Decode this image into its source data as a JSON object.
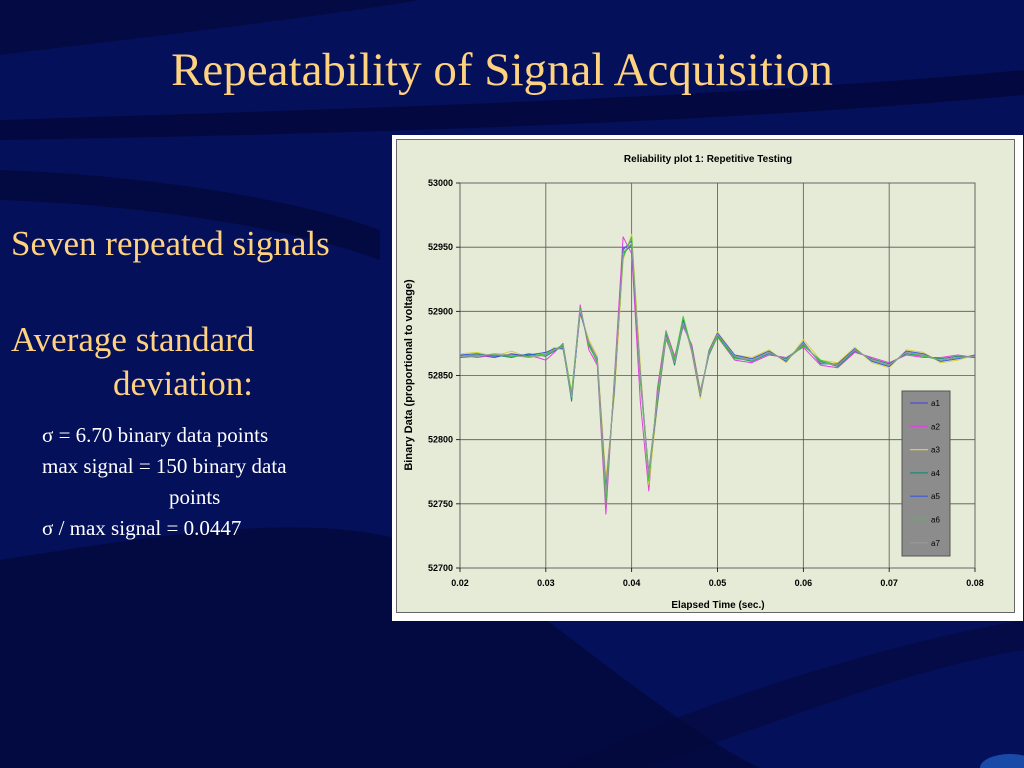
{
  "slide": {
    "title": "Repeatability of Signal Acquisition",
    "line1": "Seven repeated signals",
    "line2a": "Average standard",
    "line2b": "deviation:",
    "stat1": "σ = 6.70 binary data points",
    "stat2a": "max signal = 150 binary data",
    "stat2b": "points",
    "stat3": "σ / max signal = 0.0447"
  },
  "colors": {
    "background": "#05105a",
    "title_text": "#ffd27f",
    "body_text": "#ffffff",
    "plot_area": "#e6ebd7",
    "legend_box": "#8c8c8c"
  },
  "chart_data": {
    "type": "line",
    "title": "Reliability plot 1:  Repetitive Testing",
    "xlabel": "Elapsed Time (sec.)",
    "ylabel": "Binary Data (proportional to voltage)",
    "xlim": [
      0.02,
      0.08
    ],
    "ylim": [
      52700,
      53000
    ],
    "xticks": [
      "0.02",
      "0.03",
      "0.04",
      "0.05",
      "0.06",
      "0.07",
      "0.08"
    ],
    "yticks": [
      "52700",
      "52750",
      "52800",
      "52850",
      "52900",
      "52950",
      "53000"
    ],
    "grid": true,
    "legend_position": "lower-right",
    "x": [
      0.02,
      0.022,
      0.024,
      0.026,
      0.028,
      0.03,
      0.031,
      0.032,
      0.033,
      0.034,
      0.035,
      0.036,
      0.037,
      0.038,
      0.039,
      0.04,
      0.041,
      0.042,
      0.043,
      0.044,
      0.045,
      0.046,
      0.047,
      0.048,
      0.049,
      0.05,
      0.052,
      0.054,
      0.056,
      0.058,
      0.06,
      0.062,
      0.064,
      0.066,
      0.068,
      0.07,
      0.072,
      0.074,
      0.076,
      0.078,
      0.08
    ],
    "series": [
      {
        "name": "a1",
        "color": "#4b4bd8",
        "values": [
          52865,
          52866,
          52864,
          52867,
          52865,
          52866,
          52870,
          52872,
          52832,
          52900,
          52875,
          52862,
          52760,
          52842,
          52948,
          52955,
          52850,
          52770,
          52830,
          52880,
          52860,
          52892,
          52870,
          52835,
          52868,
          52882,
          52865,
          52862,
          52868,
          52862,
          52875,
          52860,
          52858,
          52870,
          52862,
          52858,
          52868,
          52866,
          52862,
          52864,
          52865
        ]
      },
      {
        "name": "a2",
        "color": "#e040e0",
        "values": [
          52866,
          52864,
          52866,
          52865,
          52866,
          52862,
          52868,
          52875,
          52835,
          52905,
          52870,
          52858,
          52742,
          52850,
          52958,
          52945,
          52830,
          52760,
          52840,
          52885,
          52865,
          52888,
          52874,
          52838,
          52866,
          52880,
          52862,
          52860,
          52866,
          52864,
          52872,
          52858,
          52856,
          52868,
          52864,
          52860,
          52866,
          52864,
          52864,
          52866,
          52864
        ]
      },
      {
        "name": "a3",
        "color": "#d8d040",
        "values": [
          52867,
          52868,
          52865,
          52869,
          52864,
          52867,
          52872,
          52870,
          52838,
          52898,
          52878,
          52865,
          52770,
          52835,
          52940,
          52960,
          52858,
          52765,
          52826,
          52878,
          52862,
          52895,
          52868,
          52832,
          52870,
          52884,
          52866,
          52864,
          52870,
          52860,
          52878,
          52862,
          52860,
          52872,
          52860,
          52856,
          52870,
          52868,
          52860,
          52862,
          52866
        ]
      },
      {
        "name": "a4",
        "color": "#208a7a",
        "values": [
          52864,
          52865,
          52866,
          52864,
          52867,
          52865,
          52869,
          52873,
          52830,
          52902,
          52874,
          52860,
          52755,
          52845,
          52945,
          52952,
          52846,
          52775,
          52832,
          52882,
          52858,
          52890,
          52872,
          52836,
          52866,
          52881,
          52864,
          52861,
          52867,
          52863,
          52874,
          52861,
          52857,
          52869,
          52863,
          52859,
          52867,
          52865,
          52863,
          52865,
          52864
        ]
      },
      {
        "name": "a5",
        "color": "#3a5ad8",
        "values": [
          52866,
          52867,
          52865,
          52866,
          52866,
          52868,
          52871,
          52871,
          52834,
          52899,
          52876,
          52863,
          52762,
          52840,
          52950,
          52950,
          52852,
          52772,
          52828,
          52879,
          52861,
          52893,
          52869,
          52834,
          52869,
          52883,
          52866,
          52863,
          52869,
          52861,
          52876,
          52859,
          52859,
          52871,
          52861,
          52857,
          52869,
          52867,
          52861,
          52863,
          52866
        ]
      },
      {
        "name": "a6",
        "color": "#38c838",
        "values": [
          52865,
          52866,
          52866,
          52865,
          52865,
          52867,
          52870,
          52874,
          52836,
          52903,
          52873,
          52861,
          52750,
          52848,
          52942,
          52958,
          52848,
          52768,
          52836,
          52884,
          52863,
          52896,
          52871,
          52837,
          52867,
          52880,
          52863,
          52862,
          52868,
          52862,
          52873,
          52862,
          52858,
          52870,
          52862,
          52858,
          52868,
          52865,
          52862,
          52864,
          52865
        ]
      },
      {
        "name": "a7",
        "color": "#9a9a9a",
        "values": [
          52865,
          52865,
          52867,
          52866,
          52864,
          52866,
          52870,
          52872,
          52833,
          52901,
          52876,
          52862,
          52758,
          52844,
          52946,
          52953,
          52850,
          52773,
          52831,
          52880,
          52860,
          52891,
          52870,
          52835,
          52868,
          52882,
          52865,
          52862,
          52868,
          52862,
          52875,
          52860,
          52858,
          52870,
          52862,
          52858,
          52868,
          52866,
          52862,
          52864,
          52865
        ]
      }
    ]
  }
}
